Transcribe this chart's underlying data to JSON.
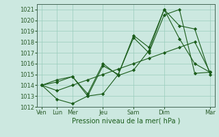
{
  "title": "",
  "xlabel": "Pression niveau de la mer( hPa )",
  "background_color": "#cce8e0",
  "grid_color": "#99ccbb",
  "line_color": "#1a5c1a",
  "ylim": [
    1012,
    1021.5
  ],
  "yticks": [
    1012,
    1013,
    1014,
    1015,
    1016,
    1017,
    1018,
    1019,
    1020,
    1021
  ],
  "day_tick_labels": [
    "Ven",
    "Lun",
    "Mer",
    "Jeu",
    "Sam",
    "Dim",
    "Mar"
  ],
  "day_tick_positions": [
    0,
    1,
    2,
    4,
    6,
    8,
    11
  ],
  "series": [
    [
      1014.0,
      1014.3,
      1014.8,
      1013.0,
      1013.2,
      1015.0,
      1018.4,
      1017.0,
      1020.5,
      1021.0,
      1015.1,
      1015.2
    ],
    [
      1014.0,
      1012.7,
      1012.3,
      1013.0,
      1015.8,
      1015.0,
      1018.6,
      1017.5,
      1021.0,
      1018.3,
      1016.0,
      1015.2
    ],
    [
      1014.0,
      1014.5,
      1014.8,
      1013.2,
      1016.0,
      1014.9,
      1015.4,
      1017.2,
      1021.0,
      1019.5,
      1019.2,
      1015.0
    ],
    [
      1014.0,
      1013.5,
      1014.0,
      1014.5,
      1015.0,
      1015.5,
      1016.0,
      1016.5,
      1017.0,
      1017.5,
      1018.0,
      1015.2
    ]
  ],
  "tick_fontsize": 6,
  "xlabel_fontsize": 7,
  "marker": "D",
  "marker_size": 2.2,
  "linewidth": 0.8
}
